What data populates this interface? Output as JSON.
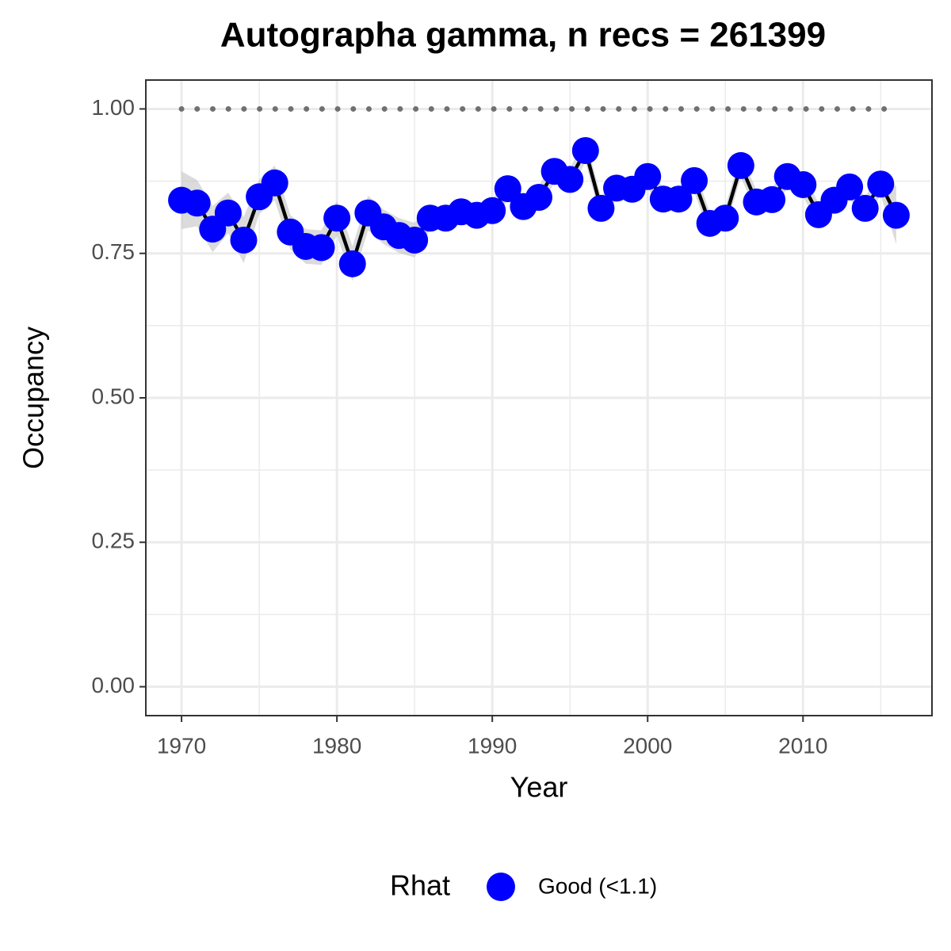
{
  "chart_data": {
    "type": "line",
    "title": "Autographa gamma, n recs = 261399",
    "x_label": "Year",
    "y_label": "Occupancy",
    "x": [
      1970,
      1971,
      1972,
      1973,
      1974,
      1975,
      1976,
      1977,
      1978,
      1979,
      1980,
      1981,
      1982,
      1983,
      1984,
      1985,
      1986,
      1987,
      1988,
      1989,
      1990,
      1991,
      1992,
      1993,
      1994,
      1995,
      1996,
      1997,
      1998,
      1999,
      2000,
      2001,
      2002,
      2003,
      2004,
      2005,
      2006,
      2007,
      2008,
      2009,
      2010,
      2011,
      2012,
      2013,
      2014,
      2015,
      2016
    ],
    "series": [
      {
        "name": "Good (<1.1)",
        "color": "#0000ff",
        "values": [
          0.842,
          0.837,
          0.792,
          0.82,
          0.773,
          0.848,
          0.872,
          0.787,
          0.762,
          0.76,
          0.811,
          0.732,
          0.82,
          0.796,
          0.781,
          0.773,
          0.811,
          0.811,
          0.822,
          0.816,
          0.824,
          0.862,
          0.831,
          0.847,
          0.892,
          0.878,
          0.928,
          0.828,
          0.863,
          0.861,
          0.883,
          0.844,
          0.844,
          0.876,
          0.802,
          0.811,
          0.902,
          0.839,
          0.843,
          0.883,
          0.869,
          0.817,
          0.842,
          0.865,
          0.828,
          0.87,
          0.816
        ]
      }
    ],
    "lower": [
      0.792,
      0.797,
      0.752,
      0.785,
      0.733,
      0.818,
      0.842,
      0.757,
      0.732,
      0.73,
      0.781,
      0.702,
      0.79,
      0.766,
      0.751,
      0.743,
      0.791,
      0.791,
      0.802,
      0.796,
      0.804,
      0.842,
      0.811,
      0.827,
      0.872,
      0.858,
      0.908,
      0.808,
      0.843,
      0.841,
      0.863,
      0.824,
      0.824,
      0.856,
      0.782,
      0.791,
      0.882,
      0.819,
      0.823,
      0.863,
      0.849,
      0.797,
      0.822,
      0.845,
      0.808,
      0.85,
      0.766
    ],
    "upper": [
      0.892,
      0.877,
      0.832,
      0.855,
      0.813,
      0.878,
      0.902,
      0.817,
      0.792,
      0.79,
      0.841,
      0.762,
      0.85,
      0.826,
      0.811,
      0.803,
      0.831,
      0.831,
      0.842,
      0.836,
      0.844,
      0.882,
      0.851,
      0.867,
      0.912,
      0.898,
      0.948,
      0.848,
      0.883,
      0.881,
      0.903,
      0.864,
      0.864,
      0.896,
      0.822,
      0.831,
      0.922,
      0.859,
      0.863,
      0.903,
      0.889,
      0.837,
      0.862,
      0.885,
      0.848,
      0.89,
      0.866
    ],
    "reference_line": 1,
    "legend_title": "Rhat",
    "legend_position": "bottom",
    "xlim": [
      1967.7,
      2018.3
    ],
    "xticks": [
      1970,
      1980,
      1990,
      2000,
      2010
    ],
    "xminor": [
      1975,
      1985,
      1995,
      2005,
      2015
    ],
    "ylim": [
      -0.05,
      1.05
    ],
    "yticks": [
      {
        "value": 0,
        "label": "0.00"
      },
      {
        "value": 0.25,
        "label": "0.25"
      },
      {
        "value": 0.5,
        "label": "0.50"
      },
      {
        "value": 0.75,
        "label": "0.75"
      },
      {
        "value": 1,
        "label": "1.00"
      }
    ],
    "yminor": [
      0.125,
      0.375,
      0.625,
      0.875
    ],
    "grid": true
  }
}
